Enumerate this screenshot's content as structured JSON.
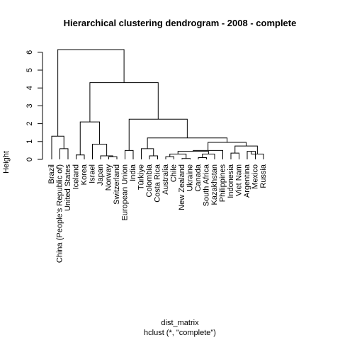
{
  "chart_data": {
    "type": "dendrogram",
    "title": "Hierarchical clustering dendrogram - 2008 - complete",
    "ylabel": "Height",
    "xlabel": "dist_matrix",
    "sub": "hclust (*, \"complete\")",
    "ylim": [
      0,
      6
    ],
    "yticks": [
      "0",
      "1",
      "2",
      "3",
      "4",
      "5",
      "6"
    ],
    "leaves": [
      "Brazil",
      "China (People's Republic of)",
      "United States",
      "Iceland",
      "Korea",
      "Israel",
      "Japan",
      "Norway",
      "Switzerland",
      "European Union",
      "India",
      "Türkiye",
      "Colombia",
      "Costa Rica",
      "Australia",
      "Chile",
      "New Zealand",
      "Ukraine",
      "Canada",
      "South Africa",
      "Kazakhstan",
      "Philippines",
      "Indonesia",
      "Viet Nam",
      "Argentina",
      "Mexico",
      "Russia"
    ],
    "merges": [
      [
        -2,
        -3,
        0.6
      ],
      [
        -1,
        1,
        1.3
      ],
      [
        -4,
        -5,
        0.25
      ],
      [
        -8,
        -9,
        0.15
      ],
      [
        -7,
        4,
        0.2
      ],
      [
        -6,
        5,
        0.85
      ],
      [
        3,
        6,
        2.1
      ],
      [
        -10,
        -11,
        0.5
      ],
      [
        -13,
        -14,
        0.2
      ],
      [
        -12,
        9,
        0.6
      ],
      [
        -15,
        -16,
        0.15
      ],
      [
        -17,
        -18,
        0.05
      ],
      [
        11,
        12,
        0.3
      ],
      [
        -19,
        -20,
        0.1
      ],
      [
        14,
        -21,
        0.3
      ],
      [
        13,
        15,
        0.45
      ],
      [
        16,
        -22,
        0.5
      ],
      [
        -23,
        -24,
        0.35
      ],
      [
        -25,
        -26,
        0.45
      ],
      [
        19,
        -27,
        0.3
      ],
      [
        18,
        20,
        0.75
      ],
      [
        17,
        21,
        0.95
      ],
      [
        10,
        22,
        1.2
      ],
      [
        8,
        23,
        2.25
      ],
      [
        7,
        24,
        4.3
      ],
      [
        2,
        25,
        6.15
      ]
    ]
  }
}
